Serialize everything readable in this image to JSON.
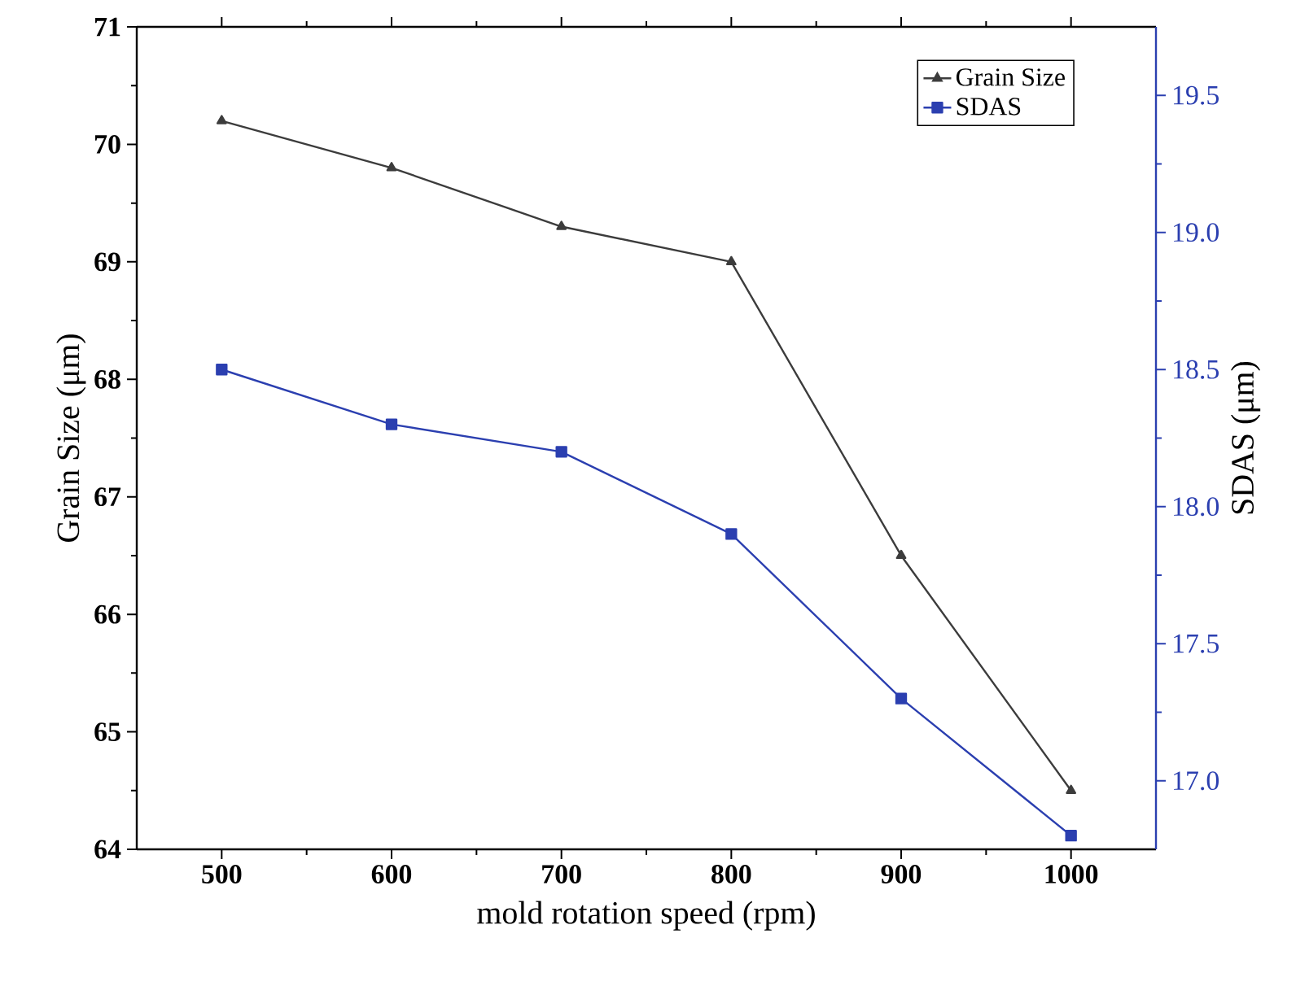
{
  "chart_data": {
    "type": "line",
    "xlabel": "mold rotation speed (rpm)",
    "ylabel": "Grain Size (μm)",
    "y2label": "SDAS (μm)",
    "x": [
      500,
      600,
      700,
      800,
      900,
      1000
    ],
    "xlim": [
      450,
      1050
    ],
    "xticks": [
      500,
      600,
      700,
      800,
      900,
      1000
    ],
    "ylim": [
      64,
      71
    ],
    "yticks": [
      64,
      65,
      66,
      67,
      68,
      69,
      70,
      71
    ],
    "y2lim": [
      16.75,
      19.75
    ],
    "y2ticks": [
      {
        "value": 17,
        "label": "17.0"
      },
      {
        "value": 17.5,
        "label": "17.5"
      },
      {
        "value": 18,
        "label": "18.0"
      },
      {
        "value": 18.5,
        "label": "18.5"
      },
      {
        "value": 19,
        "label": "19.0"
      },
      {
        "value": 19.5,
        "label": "19.5"
      }
    ],
    "legend": "top right",
    "grid": false,
    "line_style": "solid",
    "series": [
      {
        "name": "Grain Size",
        "color": "#3c3c3c",
        "marker": "triangle",
        "values": [
          70.2,
          69.8,
          69.3,
          69.0,
          66.5,
          64.5
        ]
      },
      {
        "name": "SDAS",
        "color": "#2b3fb0",
        "marker": "square",
        "axis": "y2",
        "values": [
          18.5,
          18.3,
          18.2,
          17.9,
          17.3,
          16.8
        ]
      }
    ]
  }
}
